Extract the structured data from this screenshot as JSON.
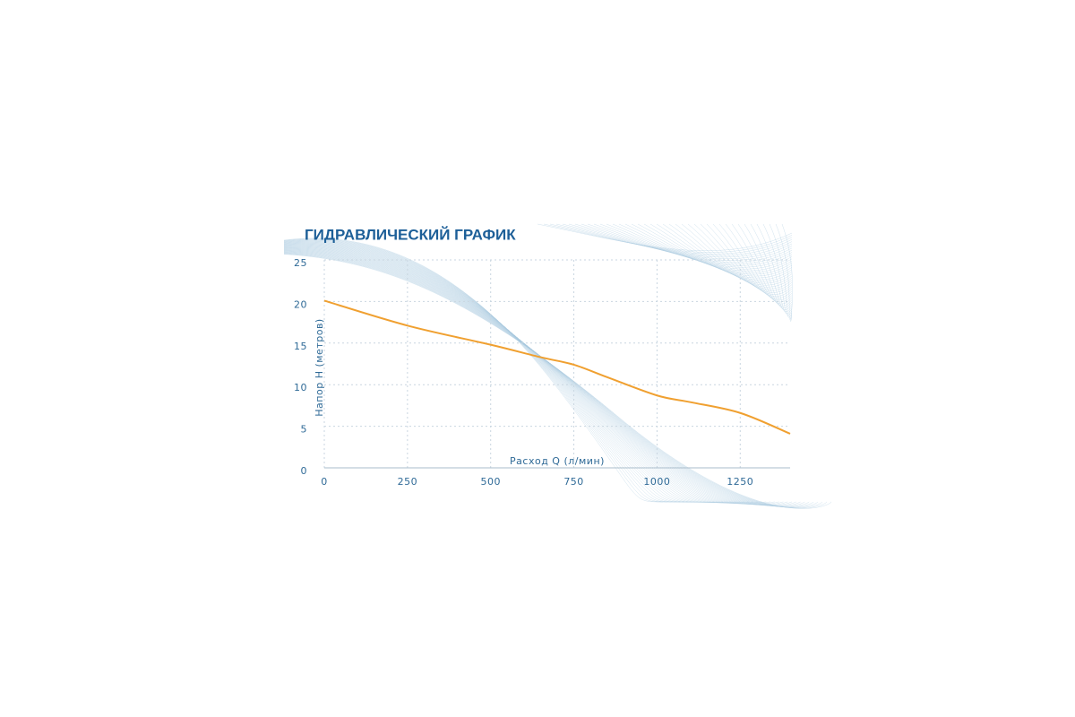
{
  "chart_data": {
    "type": "line",
    "title": "ГИДРАВЛИЧЕСКИЙ ГРАФИК",
    "x_label": "Расход Q (л/мин)",
    "y_label": "Напор Н (метров)",
    "x": [
      0,
      250,
      500,
      650,
      750,
      850,
      1000,
      1100,
      1250,
      1400
    ],
    "series": [
      {
        "name": "Напор",
        "color": "#f0a030",
        "values": [
          20.1,
          17.1,
          14.8,
          13.3,
          12.4,
          10.9,
          8.7,
          7.9,
          6.6,
          4.1
        ]
      }
    ],
    "xlim": [
      0,
      1400
    ],
    "xticks": [
      0,
      250,
      500,
      750,
      1000,
      1250
    ],
    "ylim": [
      0,
      25
    ],
    "yticks": [
      0,
      5,
      10,
      15,
      20,
      25
    ],
    "grid": true
  }
}
